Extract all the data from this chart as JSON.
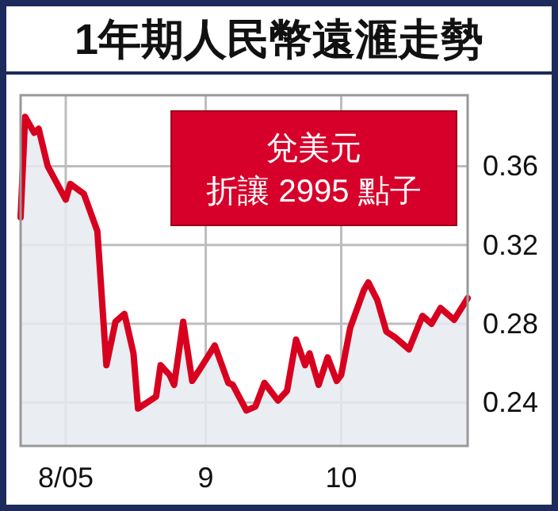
{
  "chart_data": {
    "type": "area",
    "title": "1年期人民幣遠滙走勢",
    "annotations": [
      "兌美元",
      "折讓 2995 點子"
    ],
    "x": [
      "2005-07-22",
      "2005-07-23",
      "2005-07-25",
      "2005-07-26",
      "2005-07-28",
      "2005-08-01",
      "2005-08-02",
      "2005-08-05",
      "2005-08-08",
      "2005-08-10",
      "2005-08-12",
      "2005-08-14",
      "2005-08-16",
      "2005-08-17",
      "2005-08-21",
      "2005-08-22",
      "2005-08-24",
      "2005-08-25",
      "2005-08-27",
      "2005-08-29",
      "2005-08-31",
      "2005-09-03",
      "2005-09-06",
      "2005-09-07",
      "2005-09-10",
      "2005-09-12",
      "2005-09-14",
      "2005-09-17",
      "2005-09-19",
      "2005-09-21",
      "2005-09-23",
      "2005-09-24",
      "2005-09-26",
      "2005-09-28",
      "2005-09-30",
      "2005-10-01",
      "2005-10-03",
      "2005-10-06",
      "2005-10-07",
      "2005-10-09",
      "2005-10-11",
      "2005-10-13",
      "2005-10-16",
      "2005-10-19",
      "2005-10-21",
      "2005-10-23",
      "2005-10-26",
      "2005-10-29"
    ],
    "series": [
      {
        "color": "#d7001f",
        "values": [
          0.334,
          0.385,
          0.377,
          0.379,
          0.36,
          0.343,
          0.351,
          0.346,
          0.327,
          0.259,
          0.281,
          0.285,
          0.265,
          0.237,
          0.243,
          0.259,
          0.254,
          0.249,
          0.281,
          0.251,
          0.258,
          0.269,
          0.25,
          0.249,
          0.236,
          0.238,
          0.25,
          0.241,
          0.246,
          0.272,
          0.259,
          0.265,
          0.249,
          0.263,
          0.251,
          0.254,
          0.278,
          0.297,
          0.301,
          0.292,
          0.276,
          0.273,
          0.267,
          0.284,
          0.28,
          0.288,
          0.282,
          0.293
        ]
      }
    ],
    "xlim": [
      "2005-07-22",
      "2005-10-29"
    ],
    "xticks": [
      {
        "value": "2005-08-01",
        "label": "8/05"
      },
      {
        "value": "2005-09-01",
        "label": "9"
      },
      {
        "value": "2005-10-01",
        "label": "10"
      }
    ],
    "ylim": [
      0.218,
      0.396
    ],
    "yticks": [
      0.24,
      0.28,
      0.32,
      0.36
    ],
    "grid": true
  }
}
